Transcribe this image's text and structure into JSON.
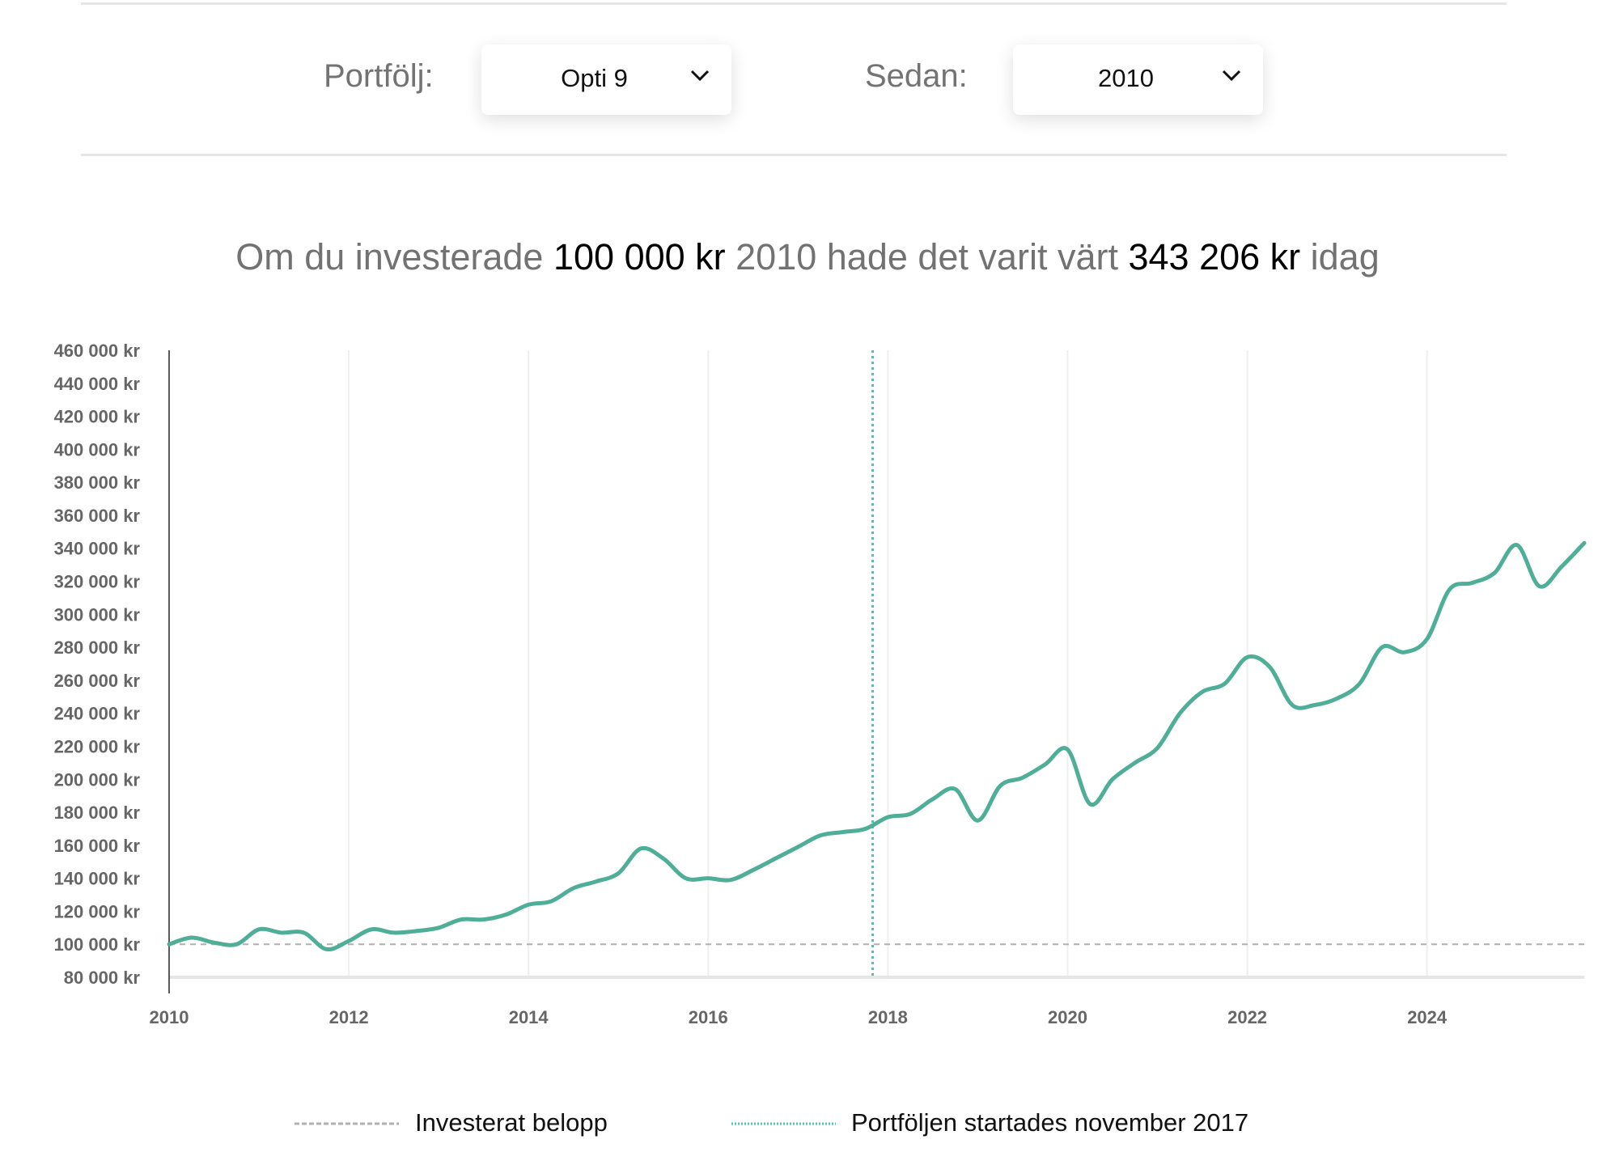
{
  "controls": {
    "portfolio_label": "Portfölj:",
    "portfolio_value": "Opti 9",
    "since_label": "Sedan:",
    "since_value": "2010"
  },
  "headline": {
    "part1": "Om du investerade",
    "amount": "100 000 kr",
    "part2": "2010 hade det varit värt",
    "value": "343 206 kr",
    "part3": "idag"
  },
  "legend": {
    "invested": "Investerat belopp",
    "started": "Portföljen startades november 2017"
  },
  "colors": {
    "line": "#4fae97",
    "start_marker": "#4cc4ad",
    "invested": "#b0b0b0"
  },
  "chart_data": {
    "type": "line",
    "title": "",
    "xlabel": "",
    "ylabel": "",
    "xlim": [
      2010,
      2025.75
    ],
    "ylim": [
      80000,
      460000
    ],
    "x_ticks": [
      2010,
      2012,
      2014,
      2016,
      2018,
      2020,
      2022,
      2024
    ],
    "x_tick_labels": [
      "2010",
      "2012",
      "2014",
      "2016",
      "2018",
      "2020",
      "2022",
      "2024"
    ],
    "y_ticks": [
      80000,
      100000,
      120000,
      140000,
      160000,
      180000,
      200000,
      220000,
      240000,
      260000,
      280000,
      300000,
      320000,
      340000,
      360000,
      380000,
      400000,
      420000,
      440000,
      460000
    ],
    "y_tick_labels": [
      "80 000 kr",
      "100 000 kr",
      "120 000 kr",
      "140 000 kr",
      "160 000 kr",
      "180 000 kr",
      "200 000 kr",
      "220 000 kr",
      "240 000 kr",
      "260 000 kr",
      "280 000 kr",
      "300 000 kr",
      "320 000 kr",
      "340 000 kr",
      "360 000 kr",
      "380 000 kr",
      "400 000 kr",
      "420 000 kr",
      "440 000 kr",
      "460 000 kr"
    ],
    "grid": "vertical",
    "invested_value": 100000,
    "start_marker_x": 2017.83,
    "series": [
      {
        "name": "Opti 9",
        "x": [
          2010,
          2010.25,
          2010.5,
          2010.75,
          2011,
          2011.25,
          2011.5,
          2011.75,
          2012,
          2012.25,
          2012.5,
          2012.75,
          2013,
          2013.25,
          2013.5,
          2013.75,
          2014,
          2014.25,
          2014.5,
          2014.75,
          2015,
          2015.25,
          2015.5,
          2015.75,
          2016,
          2016.25,
          2016.5,
          2016.75,
          2017,
          2017.25,
          2017.5,
          2017.75,
          2018,
          2018.25,
          2018.5,
          2018.75,
          2019,
          2019.25,
          2019.5,
          2019.75,
          2020,
          2020.25,
          2020.5,
          2020.75,
          2021,
          2021.25,
          2021.5,
          2021.75,
          2022,
          2022.25,
          2022.5,
          2022.75,
          2023,
          2023.25,
          2023.5,
          2023.75,
          2024,
          2024.25,
          2024.5,
          2024.75,
          2025,
          2025.25,
          2025.5,
          2025.75
        ],
        "values": [
          100000,
          104000,
          101000,
          100000,
          109000,
          107000,
          107000,
          97000,
          102000,
          109000,
          107000,
          108000,
          110000,
          115000,
          115000,
          118000,
          124000,
          126000,
          134000,
          138000,
          143000,
          158000,
          152000,
          140000,
          140000,
          139000,
          145000,
          152000,
          159000,
          166000,
          168000,
          170000,
          177000,
          179000,
          188000,
          194000,
          175000,
          196000,
          201000,
          209000,
          218000,
          185000,
          200000,
          210000,
          219000,
          240000,
          253000,
          258000,
          274000,
          268000,
          245000,
          245000,
          249000,
          258000,
          280000,
          277000,
          285000,
          315000,
          319000,
          325000,
          342000,
          317000,
          329000,
          343206
        ]
      }
    ],
    "legend": [
      "Investerat belopp",
      "Portföljen startades november 2017"
    ],
    "legend_position": "bottom"
  }
}
